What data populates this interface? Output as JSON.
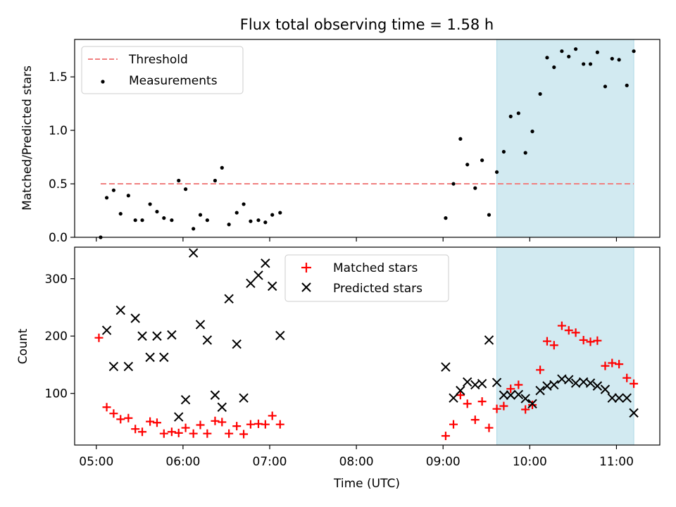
{
  "title": "Flux total observing time = 1.58 h",
  "xlabel": "Time (UTC)",
  "colors": {
    "threshold": "#f08080",
    "measurement": "#000000",
    "matched": "#ff0000",
    "predicted": "#000000",
    "shade": "#add8e6"
  },
  "chart_data": [
    {
      "type": "scatter",
      "panel": "top",
      "ylabel": "Matched/Predicted stars",
      "xlim": [
        4.75,
        11.5
      ],
      "ylim": [
        0,
        1.85
      ],
      "yticks": [
        0.0,
        0.5,
        1.0,
        1.5
      ],
      "ytick_labels": [
        "0.0",
        "0.5",
        "1.0",
        "1.5"
      ],
      "shaded_region": [
        9.62,
        11.2
      ],
      "legend": {
        "position": "top-left",
        "entries": [
          "Threshold",
          "Measurements"
        ]
      },
      "threshold": {
        "name": "Threshold",
        "value": 0.5,
        "x_range": [
          5.05,
          11.2
        ]
      },
      "series": [
        {
          "name": "Measurements",
          "points": [
            [
              5.05,
              0.0
            ],
            [
              5.12,
              0.37
            ],
            [
              5.2,
              0.44
            ],
            [
              5.28,
              0.22
            ],
            [
              5.37,
              0.39
            ],
            [
              5.45,
              0.16
            ],
            [
              5.53,
              0.16
            ],
            [
              5.62,
              0.31
            ],
            [
              5.7,
              0.24
            ],
            [
              5.78,
              0.18
            ],
            [
              5.87,
              0.16
            ],
            [
              5.95,
              0.53
            ],
            [
              6.03,
              0.45
            ],
            [
              6.12,
              0.08
            ],
            [
              6.2,
              0.21
            ],
            [
              6.28,
              0.16
            ],
            [
              6.37,
              0.53
            ],
            [
              6.45,
              0.65
            ],
            [
              6.53,
              0.12
            ],
            [
              6.62,
              0.23
            ],
            [
              6.7,
              0.31
            ],
            [
              6.78,
              0.15
            ],
            [
              6.87,
              0.16
            ],
            [
              6.95,
              0.14
            ],
            [
              7.03,
              0.21
            ],
            [
              7.12,
              0.23
            ],
            [
              9.03,
              0.18
            ],
            [
              9.12,
              0.5
            ],
            [
              9.2,
              0.92
            ],
            [
              9.28,
              0.68
            ],
            [
              9.37,
              0.46
            ],
            [
              9.45,
              0.72
            ],
            [
              9.53,
              0.21
            ],
            [
              9.62,
              0.61
            ],
            [
              9.7,
              0.8
            ],
            [
              9.78,
              1.13
            ],
            [
              9.87,
              1.16
            ],
            [
              9.95,
              0.79
            ],
            [
              10.03,
              0.99
            ],
            [
              10.12,
              1.34
            ],
            [
              10.2,
              1.68
            ],
            [
              10.28,
              1.59
            ],
            [
              10.37,
              1.74
            ],
            [
              10.45,
              1.69
            ],
            [
              10.53,
              1.76
            ],
            [
              10.62,
              1.62
            ],
            [
              10.7,
              1.62
            ],
            [
              10.78,
              1.73
            ],
            [
              10.87,
              1.41
            ],
            [
              10.95,
              1.67
            ],
            [
              11.03,
              1.66
            ],
            [
              11.12,
              1.42
            ],
            [
              11.2,
              1.74
            ]
          ]
        }
      ]
    },
    {
      "type": "scatter",
      "panel": "bottom",
      "ylabel": "Count",
      "xlim": [
        4.75,
        11.5
      ],
      "ylim": [
        10,
        355
      ],
      "yticks": [
        100,
        200,
        300
      ],
      "ytick_labels": [
        "100",
        "200",
        "300"
      ],
      "xticks": [
        5,
        6,
        7,
        8,
        9,
        10,
        11
      ],
      "xtick_labels": [
        "05:00",
        "06:00",
        "07:00",
        "08:00",
        "09:00",
        "10:00",
        "11:00"
      ],
      "shaded_region": [
        9.62,
        11.2
      ],
      "legend": {
        "position": "top-center",
        "entries": [
          "Matched stars",
          "Predicted stars"
        ]
      },
      "series": [
        {
          "name": "Matched stars",
          "marker": "+",
          "points": [
            [
              5.03,
              197
            ],
            [
              5.12,
              76
            ],
            [
              5.2,
              65
            ],
            [
              5.28,
              55
            ],
            [
              5.37,
              57
            ],
            [
              5.45,
              38
            ],
            [
              5.53,
              33
            ],
            [
              5.62,
              51
            ],
            [
              5.7,
              49
            ],
            [
              5.78,
              30
            ],
            [
              5.87,
              33
            ],
            [
              5.95,
              31
            ],
            [
              6.03,
              40
            ],
            [
              6.12,
              30
            ],
            [
              6.2,
              45
            ],
            [
              6.28,
              30
            ],
            [
              6.37,
              52
            ],
            [
              6.45,
              50
            ],
            [
              6.53,
              30
            ],
            [
              6.62,
              43
            ],
            [
              6.7,
              29
            ],
            [
              6.78,
              46
            ],
            [
              6.87,
              47
            ],
            [
              6.95,
              46
            ],
            [
              7.03,
              61
            ],
            [
              7.12,
              46
            ],
            [
              9.03,
              26
            ],
            [
              9.12,
              46
            ],
            [
              9.2,
              97
            ],
            [
              9.28,
              82
            ],
            [
              9.37,
              54
            ],
            [
              9.45,
              86
            ],
            [
              9.53,
              40
            ],
            [
              9.62,
              73
            ],
            [
              9.7,
              78
            ],
            [
              9.78,
              108
            ],
            [
              9.87,
              115
            ],
            [
              9.95,
              72
            ],
            [
              10.03,
              80
            ],
            [
              10.12,
              141
            ],
            [
              10.2,
              191
            ],
            [
              10.28,
              184
            ],
            [
              10.37,
              218
            ],
            [
              10.45,
              210
            ],
            [
              10.53,
              206
            ],
            [
              10.62,
              193
            ],
            [
              10.7,
              190
            ],
            [
              10.78,
              192
            ],
            [
              10.87,
              148
            ],
            [
              10.95,
              153
            ],
            [
              11.03,
              151
            ],
            [
              11.12,
              127
            ],
            [
              11.2,
              117
            ]
          ]
        },
        {
          "name": "Predicted stars",
          "marker": "x",
          "points": [
            [
              5.12,
              210
            ],
            [
              5.2,
              147
            ],
            [
              5.28,
              245
            ],
            [
              5.37,
              147
            ],
            [
              5.45,
              231
            ],
            [
              5.53,
              200
            ],
            [
              5.62,
              163
            ],
            [
              5.7,
              200
            ],
            [
              5.78,
              163
            ],
            [
              5.87,
              202
            ],
            [
              5.95,
              59
            ],
            [
              6.03,
              89
            ],
            [
              6.12,
              345
            ],
            [
              6.2,
              220
            ],
            [
              6.28,
              193
            ],
            [
              6.37,
              97
            ],
            [
              6.45,
              76
            ],
            [
              6.53,
              265
            ],
            [
              6.62,
              186
            ],
            [
              6.7,
              92
            ],
            [
              6.78,
              292
            ],
            [
              6.87,
              306
            ],
            [
              6.95,
              327
            ],
            [
              7.03,
              287
            ],
            [
              7.12,
              201
            ],
            [
              9.03,
              146
            ],
            [
              9.12,
              92
            ],
            [
              9.2,
              105
            ],
            [
              9.28,
              120
            ],
            [
              9.37,
              115
            ],
            [
              9.45,
              117
            ],
            [
              9.53,
              193
            ],
            [
              9.62,
              119
            ],
            [
              9.7,
              97
            ],
            [
              9.78,
              97
            ],
            [
              9.87,
              98
            ],
            [
              9.95,
              91
            ],
            [
              10.03,
              82
            ],
            [
              10.12,
              105
            ],
            [
              10.2,
              113
            ],
            [
              10.28,
              115
            ],
            [
              10.37,
              125
            ],
            [
              10.45,
              124
            ],
            [
              10.53,
              118
            ],
            [
              10.62,
              120
            ],
            [
              10.7,
              118
            ],
            [
              10.78,
              113
            ],
            [
              10.87,
              107
            ],
            [
              10.95,
              92
            ],
            [
              11.03,
              92
            ],
            [
              11.12,
              92
            ],
            [
              11.2,
              66
            ]
          ]
        }
      ]
    }
  ]
}
